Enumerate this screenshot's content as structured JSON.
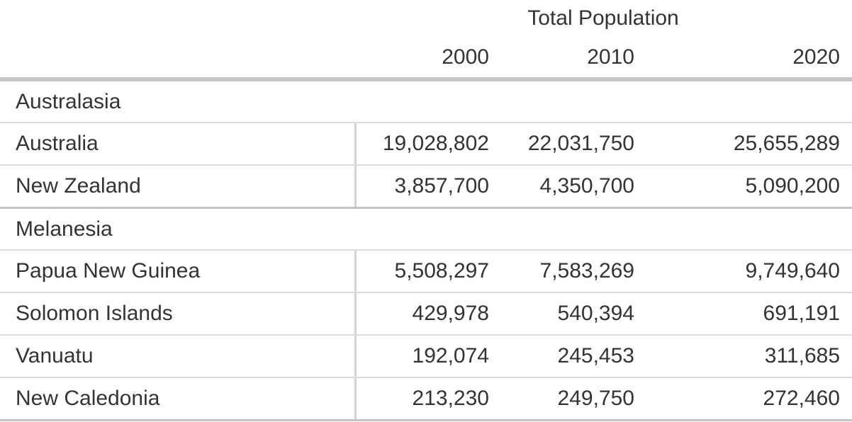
{
  "theme": {
    "text": "#333333",
    "section_border": "#c4c4c4",
    "row_border": "#dbdbdb",
    "divider": "#d4d4d4",
    "bg": "#ffffff"
  },
  "table": {
    "title": "Total Population",
    "years": [
      "2000",
      "2010",
      "2020"
    ],
    "sections": [
      {
        "label": "Australasia",
        "rows": [
          {
            "name": "Australia",
            "values": [
              "19,028,802",
              "22,031,750",
              "25,655,289"
            ]
          },
          {
            "name": "New Zealand",
            "values": [
              "3,857,700",
              "4,350,700",
              "5,090,200"
            ]
          }
        ]
      },
      {
        "label": "Melanesia",
        "rows": [
          {
            "name": "Papua New Guinea",
            "values": [
              "5,508,297",
              "7,583,269",
              "9,749,640"
            ]
          },
          {
            "name": "Solomon Islands",
            "values": [
              "429,978",
              "540,394",
              "691,191"
            ]
          },
          {
            "name": "Vanuatu",
            "values": [
              "192,074",
              "245,453",
              "311,685"
            ]
          },
          {
            "name": "New Caledonia",
            "values": [
              "213,230",
              "249,750",
              "272,460"
            ]
          }
        ]
      }
    ]
  },
  "chart_data": {
    "type": "table",
    "title": "Total Population",
    "column_headers": [
      "",
      "2000",
      "2010",
      "2020"
    ],
    "row_groups": [
      {
        "group": "Australasia",
        "rows": [
          {
            "label": "Australia",
            "values": [
              19028802,
              22031750,
              25655289
            ]
          },
          {
            "label": "New Zealand",
            "values": [
              3857700,
              4350700,
              5090200
            ]
          }
        ]
      },
      {
        "group": "Melanesia",
        "rows": [
          {
            "label": "Papua New Guinea",
            "values": [
              5508297,
              7583269,
              9749640
            ]
          },
          {
            "label": "Solomon Islands",
            "values": [
              429978,
              540394,
              691191
            ]
          },
          {
            "label": "Vanuatu",
            "values": [
              192074,
              245453,
              311685
            ]
          },
          {
            "label": "New Caledonia",
            "values": [
              213230,
              249750,
              272460
            ]
          }
        ]
      }
    ]
  }
}
